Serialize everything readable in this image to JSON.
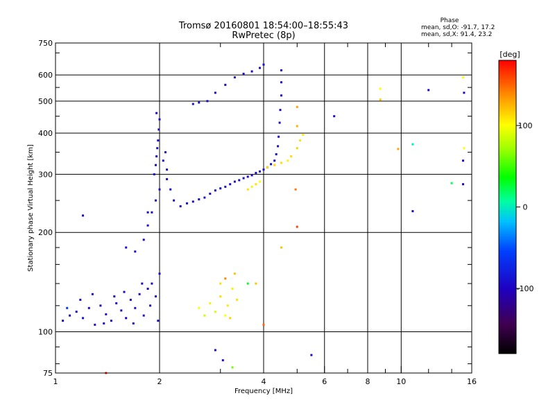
{
  "chart_data": {
    "type": "scatter",
    "title": "Tromsø 20160801 18:54:00–18:55:43",
    "subtitle": "RwPretec (8p)",
    "xlabel": "Frequency [MHz]",
    "ylabel": "Stationary phase Virtual Height [km]",
    "x_scale": "log",
    "y_scale": "log",
    "xlim": [
      1,
      16
    ],
    "ylim": [
      75,
      750
    ],
    "x_ticks": [
      1,
      2,
      4,
      6,
      8,
      10,
      16
    ],
    "x_tick_labels": [
      "1",
      "2",
      "4",
      "6",
      "8",
      "10",
      "16"
    ],
    "y_ticks": [
      75,
      100,
      200,
      300,
      400,
      500,
      600,
      750
    ],
    "y_tick_labels": [
      "75",
      "100",
      "200",
      "300",
      "400",
      "500",
      "600",
      "750"
    ],
    "grid": true,
    "stats_heading": "Phase",
    "stats_lines": [
      "mean, sd,O: -91.7, 17.2",
      "mean, sd,X: 91.4, 23.2"
    ],
    "colorbar": {
      "label": "[deg]",
      "range": [
        -180,
        180
      ],
      "ticks": [
        100,
        0,
        -100
      ],
      "tick_labels": [
        "100",
        "0",
        "-100"
      ]
    },
    "points": [
      [
        1.05,
        108,
        -95
      ],
      [
        1.1,
        112,
        -90
      ],
      [
        1.15,
        115,
        -100
      ],
      [
        1.2,
        110,
        -85
      ],
      [
        1.25,
        118,
        -95
      ],
      [
        1.3,
        105,
        -90
      ],
      [
        1.35,
        120,
        -100
      ],
      [
        1.4,
        113,
        -92
      ],
      [
        1.45,
        108,
        -88
      ],
      [
        1.5,
        122,
        -95
      ],
      [
        1.55,
        116,
        -90
      ],
      [
        1.6,
        110,
        -98
      ],
      [
        1.65,
        125,
        -92
      ],
      [
        1.7,
        118,
        -88
      ],
      [
        1.75,
        130,
        -95
      ],
      [
        1.8,
        112,
        -90
      ],
      [
        1.85,
        135,
        -95
      ],
      [
        1.9,
        140,
        -92
      ],
      [
        1.95,
        128,
        -88
      ],
      [
        2.0,
        150,
        -95
      ],
      [
        1.08,
        118,
        -60
      ],
      [
        1.18,
        125,
        -92
      ],
      [
        1.28,
        130,
        -95
      ],
      [
        1.38,
        106,
        -90
      ],
      [
        1.48,
        128,
        -92
      ],
      [
        1.58,
        132,
        -95
      ],
      [
        1.68,
        106,
        -90
      ],
      [
        1.78,
        140,
        -92
      ],
      [
        1.88,
        120,
        -95
      ],
      [
        1.98,
        108,
        -90
      ],
      [
        1.6,
        180,
        -90
      ],
      [
        1.7,
        175,
        -92
      ],
      [
        1.8,
        190,
        -95
      ],
      [
        1.85,
        210,
        -90
      ],
      [
        1.9,
        230,
        -92
      ],
      [
        1.95,
        250,
        -95
      ],
      [
        2.0,
        270,
        -92
      ],
      [
        1.93,
        300,
        -92
      ],
      [
        1.95,
        320,
        -95
      ],
      [
        1.96,
        340,
        -95
      ],
      [
        1.97,
        360,
        -92
      ],
      [
        1.98,
        380,
        -92
      ],
      [
        1.99,
        410,
        -95
      ],
      [
        2.0,
        440,
        -95
      ],
      [
        1.96,
        460,
        -92
      ],
      [
        2.05,
        330,
        -90
      ],
      [
        2.1,
        310,
        -92
      ],
      [
        2.1,
        290,
        -95
      ],
      [
        2.08,
        350,
        -92
      ],
      [
        2.15,
        270,
        -90
      ],
      [
        2.2,
        250,
        -95
      ],
      [
        2.3,
        240,
        -90
      ],
      [
        2.4,
        245,
        -88
      ],
      [
        2.5,
        248,
        -92
      ],
      [
        2.6,
        252,
        -92
      ],
      [
        2.7,
        255,
        -90
      ],
      [
        2.8,
        262,
        -92
      ],
      [
        2.9,
        268,
        -95
      ],
      [
        3.0,
        272,
        -92
      ],
      [
        3.1,
        275,
        -90
      ],
      [
        3.2,
        280,
        -92
      ],
      [
        3.3,
        285,
        -95
      ],
      [
        3.4,
        288,
        -92
      ],
      [
        3.5,
        292,
        -90
      ],
      [
        3.6,
        295,
        -92
      ],
      [
        3.7,
        298,
        -95
      ],
      [
        3.8,
        303,
        -92
      ],
      [
        3.9,
        306,
        -90
      ],
      [
        4.0,
        310,
        -92
      ],
      [
        4.1,
        315,
        -95
      ],
      [
        4.2,
        322,
        -92
      ],
      [
        4.3,
        330,
        -95
      ],
      [
        4.35,
        345,
        -92
      ],
      [
        4.4,
        365,
        -90
      ],
      [
        4.42,
        390,
        -92
      ],
      [
        4.45,
        430,
        -95
      ],
      [
        4.47,
        470,
        -92
      ],
      [
        4.5,
        520,
        -95
      ],
      [
        4.5,
        570,
        -92
      ],
      [
        4.5,
        620,
        -92
      ],
      [
        2.5,
        490,
        -92
      ],
      [
        2.6,
        495,
        -90
      ],
      [
        2.75,
        500,
        -92
      ],
      [
        2.9,
        530,
        -92
      ],
      [
        3.1,
        560,
        -95
      ],
      [
        3.3,
        590,
        -92
      ],
      [
        3.5,
        605,
        -92
      ],
      [
        3.7,
        615,
        -95
      ],
      [
        3.9,
        630,
        -92
      ],
      [
        4.0,
        645,
        -92
      ],
      [
        3.6,
        270,
        110
      ],
      [
        3.7,
        275,
        105
      ],
      [
        3.8,
        280,
        110
      ],
      [
        3.9,
        285,
        100
      ],
      [
        4.1,
        315,
        110
      ],
      [
        4.3,
        320,
        115
      ],
      [
        4.5,
        325,
        110
      ],
      [
        4.7,
        330,
        105
      ],
      [
        4.8,
        340,
        110
      ],
      [
        5.0,
        360,
        115
      ],
      [
        5.1,
        380,
        110
      ],
      [
        5.2,
        395,
        105
      ],
      [
        5.0,
        420,
        125
      ],
      [
        5.0,
        480,
        130
      ],
      [
        4.95,
        270,
        145
      ],
      [
        2.6,
        118,
        100
      ],
      [
        2.8,
        122,
        105
      ],
      [
        3.0,
        128,
        110
      ],
      [
        3.1,
        112,
        100
      ],
      [
        3.15,
        120,
        108
      ],
      [
        3.2,
        110,
        115
      ],
      [
        3.25,
        135,
        105
      ],
      [
        3.35,
        125,
        110
      ],
      [
        3.1,
        145,
        140
      ],
      [
        3.3,
        150,
        120
      ],
      [
        3.0,
        140,
        110
      ],
      [
        2.9,
        115,
        90
      ],
      [
        2.7,
        112,
        85
      ],
      [
        3.6,
        140,
        30
      ],
      [
        3.8,
        140,
        120
      ],
      [
        4.5,
        180,
        120
      ],
      [
        5.0,
        208,
        160
      ],
      [
        4.0,
        105,
        150
      ],
      [
        2.9,
        88,
        -95
      ],
      [
        3.05,
        82,
        -95
      ],
      [
        3.25,
        78,
        60
      ],
      [
        5.5,
        85,
        -95
      ],
      [
        6.4,
        450,
        -90
      ],
      [
        8.7,
        545,
        100
      ],
      [
        8.7,
        505,
        120
      ],
      [
        9.8,
        358,
        130
      ],
      [
        10.8,
        370,
        0
      ],
      [
        10.8,
        232,
        -100
      ],
      [
        12.0,
        540,
        -95
      ],
      [
        14.0,
        282,
        20
      ],
      [
        15.1,
        590,
        100
      ],
      [
        15.2,
        530,
        -95
      ],
      [
        15.2,
        360,
        100
      ],
      [
        15.1,
        330,
        -95
      ],
      [
        15.1,
        280,
        -95
      ],
      [
        1.2,
        225,
        -100
      ],
      [
        1.4,
        75,
        170
      ],
      [
        1.85,
        230,
        -92
      ]
    ]
  }
}
